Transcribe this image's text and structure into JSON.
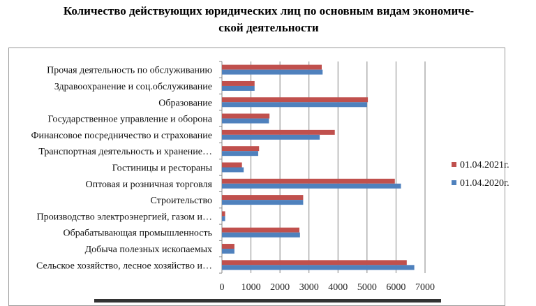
{
  "chart_data": {
    "type": "bar",
    "orientation": "horizontal",
    "title": "Количество действующих юридических лиц по основным видам экономиче-ской деятельности",
    "title_lines": [
      "Количество действующих юридических лиц по основным видам экономиче-",
      "ской деятельности"
    ],
    "categories": [
      "Прочая деятельность по обслуживанию",
      "Здравоохранение и соц.обслуживание",
      "Образование",
      "Государственное управление и оборона",
      "Финансовое посредничество и страхование",
      "Транспортная деятельность и хранение…",
      "Гостиницы и рестораны",
      "Оптовая и розничная торговля",
      "Строительство",
      "Производство электроэнергией, газом и…",
      "Обрабатывающая промышленность",
      "Добыча полезных ископаемых",
      "Сельское хозяйство, лесное хозяйство и…"
    ],
    "series": [
      {
        "name": "01.04.2021г.",
        "color": "#c0504d",
        "values": [
          3440,
          1125,
          5030,
          1640,
          3890,
          1280,
          690,
          5960,
          2800,
          110,
          2670,
          430,
          6370
        ]
      },
      {
        "name": "01.04.2020г.",
        "color": "#4f81bd",
        "values": [
          3470,
          1125,
          5000,
          1620,
          3370,
          1250,
          750,
          6170,
          2800,
          110,
          2690,
          430,
          6630
        ]
      }
    ],
    "xlim": [
      0,
      7000
    ],
    "xticks": [
      "0",
      "1000",
      "2000",
      "3000",
      "4000",
      "5000",
      "6000",
      "7000"
    ],
    "grid": true,
    "legend_position": "right"
  }
}
